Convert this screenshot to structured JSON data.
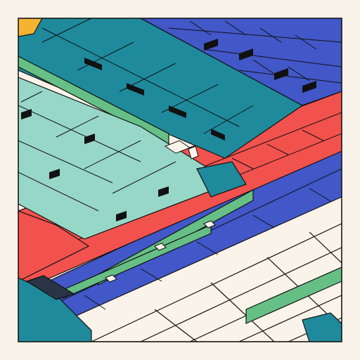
{
  "canvas": {
    "background": "#faf3e9",
    "frame_border": "#111111"
  },
  "palette": {
    "teal": "#1f8a9c",
    "teal_light": "#2a99ab",
    "mint": "#97d7c8",
    "green": "#66bf85",
    "blue": "#4257c8",
    "red": "#f2524d",
    "cream": "#faf3e9",
    "navy": "#2b3346",
    "yellow": "#f4b431",
    "black": "#111111"
  },
  "composition": {
    "style": "isometric-blocks",
    "bands": [
      "teal-upper",
      "blue-top-right",
      "mint-left",
      "green-strips",
      "red-middle",
      "blue-middle",
      "cream-grid-lower",
      "teal-lower-left"
    ]
  }
}
